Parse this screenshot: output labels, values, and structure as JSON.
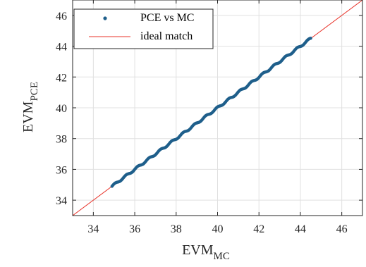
{
  "chart_data": {
    "type": "scatter",
    "xlabel": {
      "main": "EVM",
      "sub": "MC"
    },
    "ylabel": {
      "main": "EVM",
      "sub": "PCE"
    },
    "xlim": [
      33,
      47
    ],
    "ylim": [
      33,
      47
    ],
    "xticks": [
      34,
      36,
      38,
      40,
      42,
      44,
      46
    ],
    "yticks": [
      34,
      36,
      38,
      40,
      42,
      44,
      46
    ],
    "grid": true,
    "legend_position": "top-left",
    "series": [
      {
        "name": "PCE vs MC",
        "marker": "dot",
        "color": "#1f5f8b",
        "x_range": [
          34.9,
          44.5
        ],
        "y_range": [
          34.9,
          44.5
        ],
        "trend": "y ≈ x"
      },
      {
        "name": "ideal match",
        "marker": "line",
        "color": "#e8332a",
        "x": [
          33,
          47
        ],
        "y": [
          33,
          47
        ]
      }
    ]
  }
}
